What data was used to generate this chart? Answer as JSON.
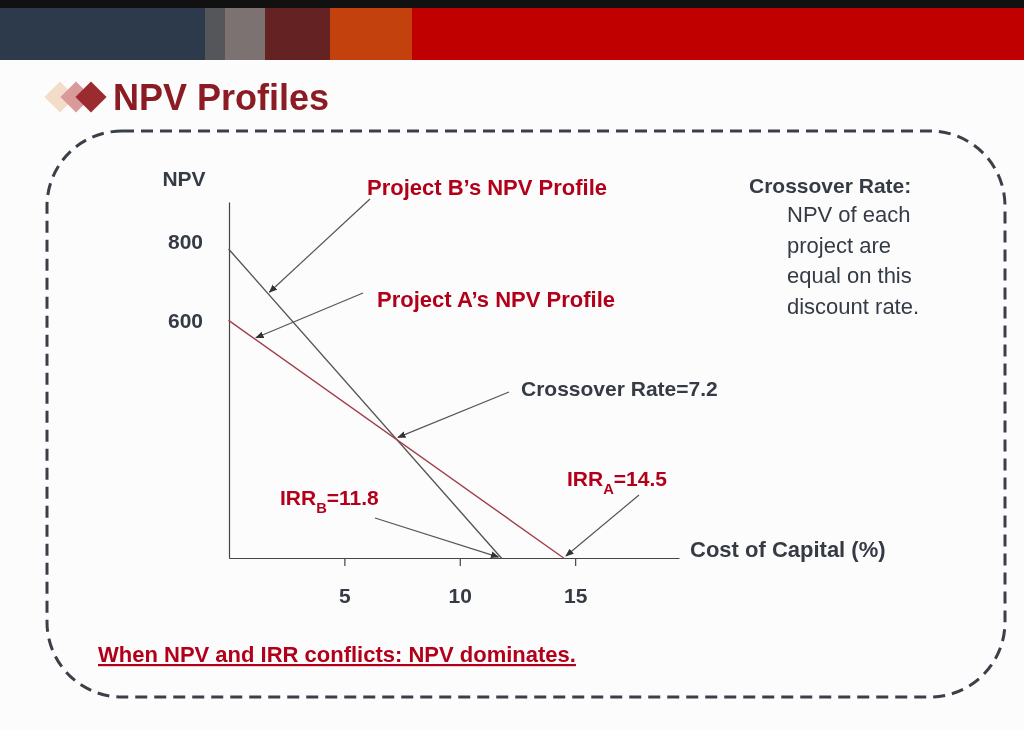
{
  "chart_data": {
    "type": "line",
    "title": "NPV Profiles",
    "xlabel": "Cost of Capital (%)",
    "ylabel": "NPV",
    "xlim": [
      0,
      19.5
    ],
    "ylim": [
      0,
      900
    ],
    "xticks": [
      5,
      10,
      15
    ],
    "yticks": [
      600,
      800
    ],
    "series": [
      {
        "name": "Project B’s NPV Profile",
        "color": "#555555",
        "x": [
          0,
          11.8
        ],
        "values": [
          780,
          0
        ]
      },
      {
        "name": "Project A’s NPV Profile",
        "color": "#a0404c",
        "x": [
          0,
          14.5
        ],
        "values": [
          600,
          0
        ]
      }
    ],
    "annotations": [
      {
        "text": "Crossover Rate=7.2",
        "x": 7.2,
        "y": 302
      },
      {
        "text": "IRR$_{B}$=11.8",
        "x": 11.8,
        "y": 0
      },
      {
        "text": "IRR$_{A}$=14.5",
        "x": 14.5,
        "y": 0
      },
      "Crossover Rate:",
      "NPV of each project are equal on this discount rate.",
      "When NPV and IRR conflicts: NPV dominates."
    ]
  }
}
